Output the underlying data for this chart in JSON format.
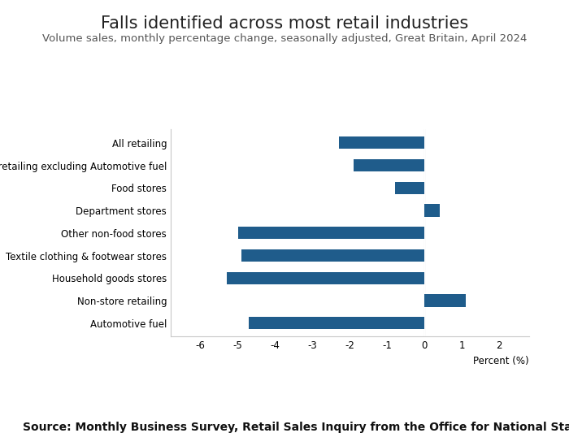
{
  "title": "Falls identified across most retail industries",
  "subtitle": "Volume sales, monthly percentage change, seasonally adjusted, Great Britain, April 2024",
  "source": "Source: Monthly Business Survey, Retail Sales Inquiry from the Office for National Statistics",
  "categories": [
    "All retailing",
    "All retailing excluding Automotive fuel",
    "Food stores",
    "Department stores",
    "Other non-food stores",
    "Textile clothing & footwear stores",
    "Household goods stores",
    "Non-store retailing",
    "Automotive fuel"
  ],
  "values": [
    -2.3,
    -1.9,
    -0.8,
    0.4,
    -5.0,
    -4.9,
    -5.3,
    1.1,
    -4.7
  ],
  "bar_color": "#1F5C8B",
  "xlim": [
    -6.8,
    2.8
  ],
  "xticks": [
    -6,
    -5,
    -4,
    -3,
    -2,
    -1,
    0,
    1,
    2
  ],
  "xlabel": "Percent (%)",
  "background_color": "#ffffff",
  "title_fontsize": 15,
  "subtitle_fontsize": 9.5,
  "source_fontsize": 10
}
